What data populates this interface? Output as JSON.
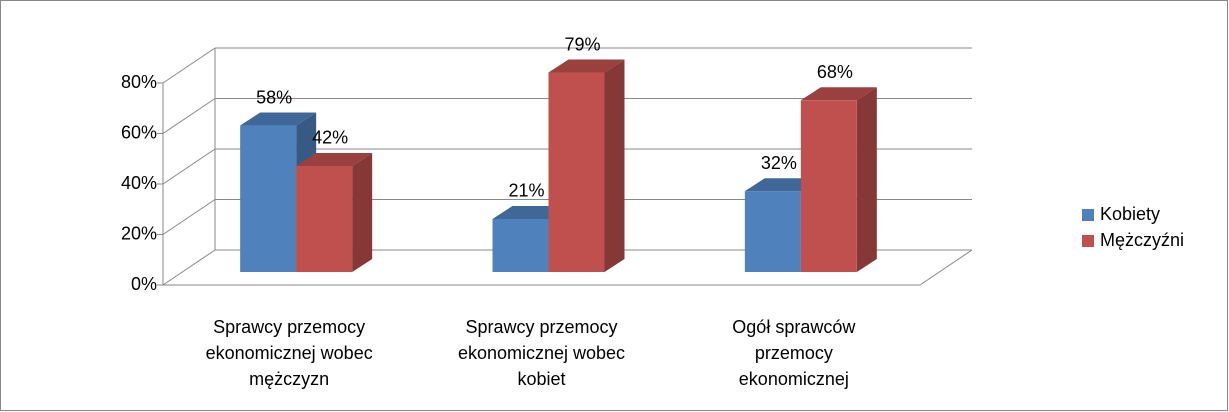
{
  "chart_data": {
    "type": "bar3d",
    "categories": [
      "Sprawcy przemocy ekonomicznej wobec mężczyzn",
      "Sprawcy przemocy ekonomicznej wobec kobiet",
      "Ogół sprawców przemocy ekonomicznej"
    ],
    "series": [
      {
        "name": "Kobiety",
        "color": "#4f81bd",
        "values": [
          58,
          21,
          32
        ],
        "value_labels": [
          "58%",
          "21%",
          "32%"
        ]
      },
      {
        "name": "Mężczyźni",
        "color": "#c0504d",
        "values": [
          42,
          79,
          68
        ],
        "value_labels": [
          "42%",
          "79%",
          "68%"
        ]
      }
    ],
    "ylim": [
      0,
      80
    ],
    "yticks": [
      {
        "value": 0,
        "label": "0%"
      },
      {
        "value": 20,
        "label": "20%"
      },
      {
        "value": 40,
        "label": "40%"
      },
      {
        "value": 60,
        "label": "60%"
      },
      {
        "value": 80,
        "label": "80%"
      }
    ],
    "grid": true,
    "legend": "right"
  }
}
